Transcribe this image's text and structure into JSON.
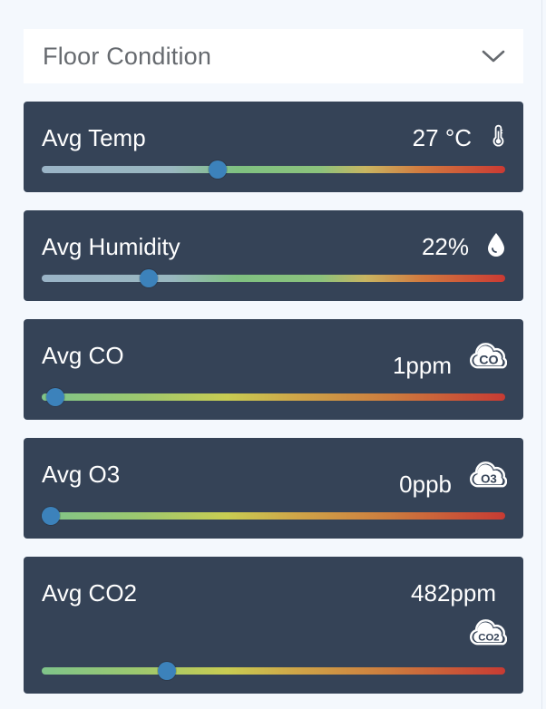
{
  "dropdown": {
    "label": "Floor Condition"
  },
  "cards": [
    {
      "title": "Avg Temp",
      "value": "27 °C",
      "icon": "thermometer-icon",
      "level": 0.38
    },
    {
      "title": "Avg Humidity",
      "value": "22%",
      "icon": "water-drop-icon",
      "level": 0.23
    },
    {
      "title": "Avg CO",
      "value": "1ppm",
      "icon": "co-cloud-icon",
      "icon_text": "CO",
      "level": 0.03
    },
    {
      "title": "Avg O3",
      "value": "0ppb",
      "icon": "o3-cloud-icon",
      "icon_text": "O3",
      "level": 0.02
    },
    {
      "title": "Avg CO2",
      "value": "482ppm",
      "icon": "co2-cloud-icon",
      "icon_text": "CO2",
      "level": 0.27
    }
  ],
  "colors": {
    "card_bg": "#354357",
    "page_bg": "#f4f8fd",
    "knob": "#3c82bb"
  }
}
